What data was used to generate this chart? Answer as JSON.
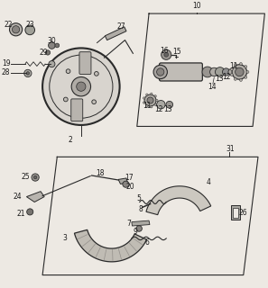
{
  "bg_color": "#ede9e3",
  "line_color": "#2a2a2a",
  "text_color": "#1a1a1a",
  "fs": 5.5
}
